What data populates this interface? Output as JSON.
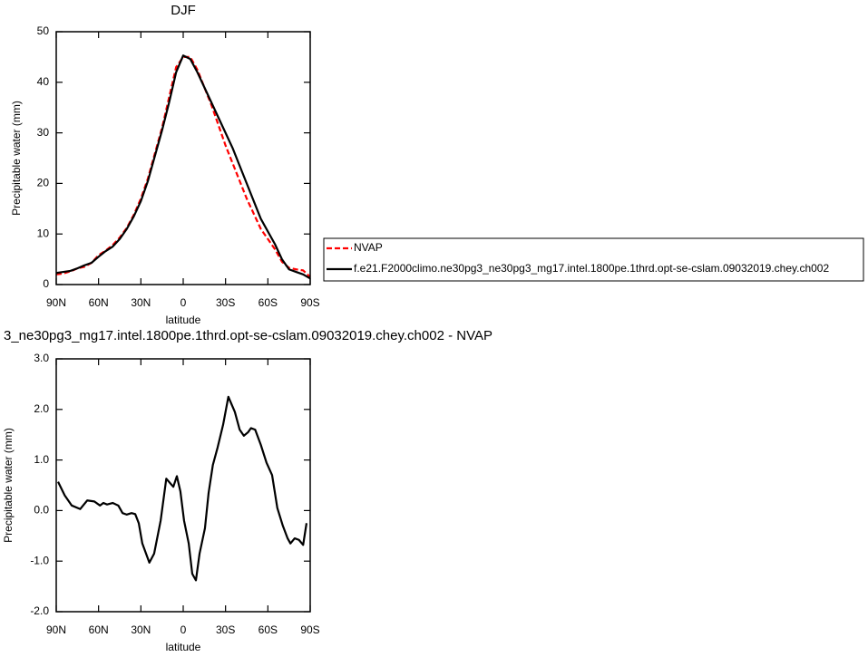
{
  "chart_data": [
    {
      "type": "line",
      "title": "DJF",
      "x_label": "latitude",
      "y_label": "Precipitable water (mm)",
      "x": [
        90,
        85,
        80,
        75,
        70,
        65,
        60,
        55,
        50,
        45,
        40,
        35,
        30,
        25,
        20,
        15,
        10,
        5,
        0,
        -5,
        -10,
        -15,
        -20,
        -25,
        -30,
        -35,
        -40,
        -45,
        -50,
        -55,
        -60,
        -65,
        -70,
        -75,
        -80,
        -85,
        -90
      ],
      "xlim": [
        90,
        -90
      ],
      "xticks": [
        {
          "value": 90,
          "label": "90N"
        },
        {
          "value": 60,
          "label": "60N"
        },
        {
          "value": 30,
          "label": "30N"
        },
        0,
        {
          "value": -30,
          "label": "30S"
        },
        {
          "value": -60,
          "label": "60S"
        },
        {
          "value": -90,
          "label": "90S"
        }
      ],
      "ylim": [
        0,
        50
      ],
      "yticks": [
        0,
        10,
        20,
        30,
        40,
        50
      ],
      "legend": "right",
      "series": [
        {
          "name": "NVAP",
          "color": "#ff0000",
          "dash": "dashed",
          "values": [
            2.0,
            2.2,
            2.6,
            3.2,
            3.5,
            4.3,
            5.8,
            6.7,
            7.8,
            9.3,
            11.2,
            13.8,
            17,
            21,
            26,
            31,
            37,
            43,
            45,
            45,
            42.5,
            39,
            35.5,
            31.5,
            27.5,
            24,
            20.5,
            17,
            14,
            11,
            9,
            7,
            4.5,
            3.3,
            3,
            2.8,
            1.5
          ]
        },
        {
          "name": "f.e21.F2000climo.ne30pg3_ne30pg3_mg17.intel.1800pe.1thrd.opt-se-cslam.09032019.chey.ch002",
          "color": "#000000",
          "dash": "solid",
          "values": [
            2.3,
            2.5,
            2.7,
            3.2,
            3.8,
            4.3,
            5.5,
            6.6,
            7.5,
            9,
            11,
            13.5,
            16.5,
            20.5,
            25.5,
            30.5,
            36,
            42,
            45.3,
            44.6,
            42,
            39,
            36,
            33,
            30,
            27,
            23.5,
            20,
            16.5,
            13,
            10.5,
            8,
            5,
            3,
            2.5,
            2,
            1.2
          ]
        }
      ]
    },
    {
      "type": "line",
      "title": "3_ne30pg3_mg17.intel.1800pe.1thrd.opt-se-cslam.09032019.chey.ch002 - NVAP",
      "x_label": "latitude",
      "y_label": "Precipitable water (mm)",
      "x": [
        88.7,
        84,
        79,
        73,
        68,
        63,
        59,
        56.6,
        54,
        50,
        46,
        43,
        40,
        36.6,
        34,
        31.5,
        29,
        24,
        20.6,
        16,
        12,
        7,
        4.5,
        2,
        -0.6,
        -3.9,
        -6.4,
        -9,
        -11.6,
        -15.4,
        -18,
        -21,
        -24.4,
        -28.3,
        -32,
        -36.6,
        -40,
        -43,
        -46,
        -48,
        -51,
        -55,
        -59,
        -63,
        -66.7,
        -70.6,
        -74,
        -76,
        -79,
        -82,
        -85,
        -87.4
      ],
      "values": [
        0.57,
        0.3,
        0.1,
        0.03,
        0.2,
        0.18,
        0.1,
        0.15,
        0.12,
        0.15,
        0.1,
        -0.05,
        -0.08,
        -0.05,
        -0.07,
        -0.25,
        -0.65,
        -1.03,
        -0.85,
        -0.2,
        0.63,
        0.47,
        0.68,
        0.38,
        -0.2,
        -0.65,
        -1.25,
        -1.38,
        -0.85,
        -0.35,
        0.35,
        0.9,
        1.25,
        1.7,
        2.25,
        1.95,
        1.6,
        1.48,
        1.55,
        1.63,
        1.6,
        1.3,
        0.95,
        0.7,
        0.05,
        -0.3,
        -0.55,
        -0.65,
        -0.55,
        -0.58,
        -0.68,
        -0.25
      ],
      "color": "#000000",
      "xlim": [
        90,
        -90
      ],
      "xticks": [
        {
          "value": 90,
          "label": "90N"
        },
        {
          "value": 60,
          "label": "60N"
        },
        {
          "value": 30,
          "label": "30N"
        },
        0,
        {
          "value": -30,
          "label": "30S"
        },
        {
          "value": -60,
          "label": "60S"
        },
        {
          "value": -90,
          "label": "90S"
        }
      ],
      "ylim": [
        -2,
        3
      ],
      "yticks": [
        {
          "value": -2,
          "label": "-2.0"
        },
        {
          "value": -1,
          "label": "-1.0"
        },
        {
          "value": 0,
          "label": "0.0"
        },
        {
          "value": 1,
          "label": "1.0"
        },
        {
          "value": 2,
          "label": "2.0"
        },
        {
          "value": 3,
          "label": "3.0"
        }
      ]
    }
  ]
}
